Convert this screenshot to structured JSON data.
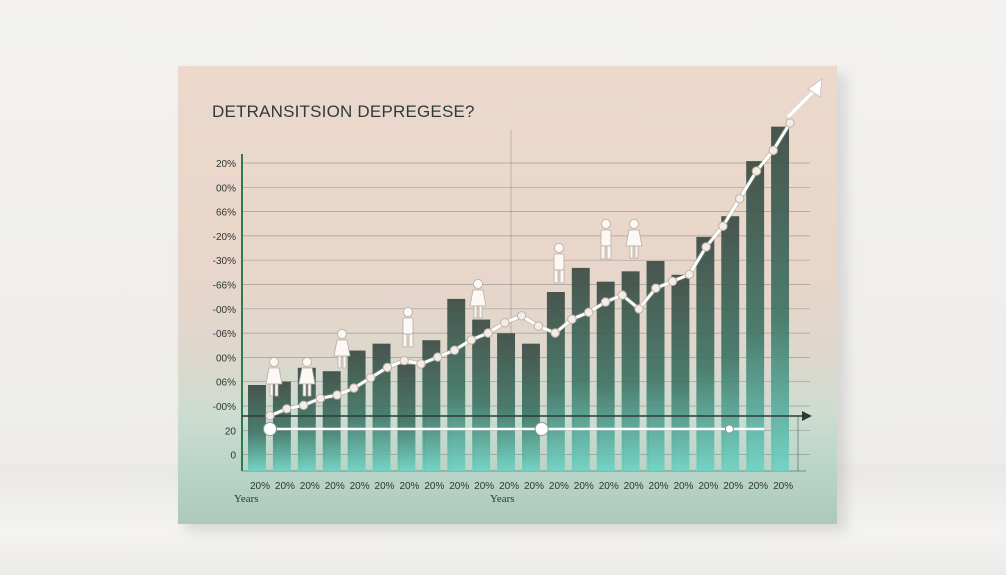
{
  "chart_data": {
    "type": "bar",
    "title": "DETRANSITSION DEPREGESE?",
    "xlabel": "Years",
    "xlabel_secondary": "Years",
    "y_tick_labels": [
      "20%",
      "00%",
      "66%",
      "-20%",
      "-30%",
      "-66%",
      "-00%",
      "-06%",
      "00%",
      "06%",
      "-00%",
      "20",
      "0"
    ],
    "x_tick_labels": [
      "20%",
      "20%",
      "20%",
      "20%",
      "20%",
      "20%",
      "20%",
      "20%",
      "20%",
      "20%",
      "20%",
      "20%",
      "20%",
      "20%",
      "20%",
      "20%",
      "20%",
      "20%",
      "20%",
      "20%",
      "20%",
      "20%"
    ],
    "grid": true,
    "bars": {
      "values": [
        9,
        10,
        14,
        13,
        19,
        21,
        15,
        22,
        34,
        28,
        24,
        21,
        36,
        43,
        39,
        42,
        45,
        41,
        52,
        58,
        74,
        84
      ]
    },
    "line": {
      "values": [
        3,
        5,
        6,
        8,
        9,
        11,
        14,
        17,
        19,
        18,
        20,
        22,
        25,
        27,
        30,
        32,
        29,
        27,
        31,
        33,
        36,
        38,
        34,
        40,
        42,
        44,
        52,
        58,
        66,
        74,
        80,
        88
      ]
    },
    "baseline_markers": [
      0,
      0.55,
      0.93
    ],
    "figures": [
      "figure-female",
      "figure-female",
      "figure-female",
      "figure-male",
      "figure-female",
      "figure-male",
      "figure-male",
      "figure-female"
    ]
  },
  "colors": {
    "bar_top": "#3b4a44",
    "bar_bottom": "#6ad0c0",
    "line": "#ffffff",
    "line_marker": "#f4ece6",
    "axis_green": "#2f7a4f",
    "grid": "#6f6f6f"
  }
}
